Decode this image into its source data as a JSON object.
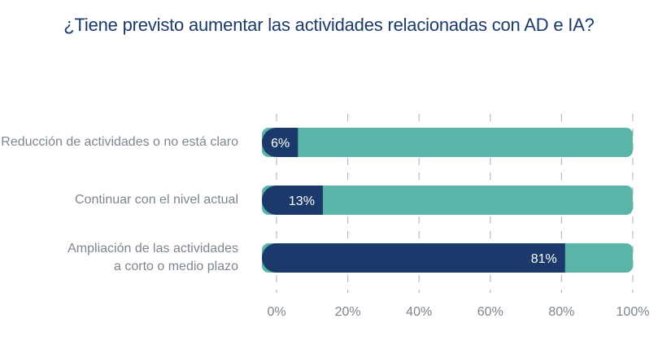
{
  "chart_data": {
    "type": "bar",
    "orientation": "horizontal",
    "stacked": true,
    "title": "¿Tiene previsto aumentar las actividades relacionadas con AD e IA?",
    "categories": [
      "Reducción de actividades o no está claro",
      "Continuar con el nivel actual",
      "Ampliación de las actividades a corto o medio plazo"
    ],
    "category_label_lines": [
      [
        "Reducción de actividades o no está claro"
      ],
      [
        "Continuar con el nivel actual"
      ],
      [
        "Ampliación de las actividades",
        "a corto o medio plazo"
      ]
    ],
    "values": [
      6,
      13,
      81
    ],
    "data_labels": [
      "6%",
      "13%",
      "81%"
    ],
    "xlim": [
      0,
      100
    ],
    "x_ticks": [
      "0%",
      "20%",
      "40%",
      "60%",
      "80%",
      "100%"
    ],
    "grid": "vertical dashed",
    "colors": {
      "highlight": "#1b3a6b",
      "remainder": "#5ab5a8",
      "title": "#1b3a6b",
      "label": "#7d8590",
      "grid": "#b8bcc2"
    }
  }
}
